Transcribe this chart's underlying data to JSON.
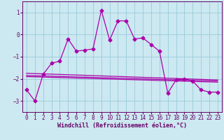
{
  "background_color": "#cce8f0",
  "grid_color": "#99ccdd",
  "line_color": "#aa00aa",
  "xlim": [
    -0.5,
    23.5
  ],
  "ylim": [
    -3.5,
    1.5
  ],
  "yticks": [
    1,
    0,
    -1,
    -2,
    -3
  ],
  "xticks": [
    0,
    1,
    2,
    3,
    4,
    5,
    6,
    7,
    8,
    9,
    10,
    11,
    12,
    13,
    14,
    15,
    16,
    17,
    18,
    19,
    20,
    21,
    22,
    23
  ],
  "xlabel": "Windchill (Refroidissement éolien,°C)",
  "main_x": [
    0,
    1,
    2,
    3,
    4,
    5,
    6,
    7,
    8,
    9,
    10,
    11,
    12,
    13,
    14,
    15,
    16,
    17,
    18,
    19,
    20,
    21,
    22,
    23
  ],
  "main_y": [
    -2.5,
    -3.0,
    -1.8,
    -1.3,
    -1.2,
    -0.2,
    -0.75,
    -0.7,
    -0.65,
    1.1,
    -0.25,
    0.62,
    0.62,
    -0.2,
    -0.15,
    -0.45,
    -0.75,
    -2.65,
    -2.05,
    -2.0,
    -2.1,
    -2.5,
    -2.6,
    -2.6
  ],
  "trend1_x": [
    0,
    23
  ],
  "trend1_y": [
    -1.75,
    -2.05
  ],
  "trend2_x": [
    0,
    23
  ],
  "trend2_y": [
    -1.85,
    -2.1
  ],
  "trend3_x": [
    0,
    23
  ],
  "trend3_y": [
    -1.9,
    -2.15
  ],
  "linewidth": 0.9,
  "markersize": 2.5,
  "tick_fontsize": 5.5,
  "xlabel_fontsize": 6.0
}
